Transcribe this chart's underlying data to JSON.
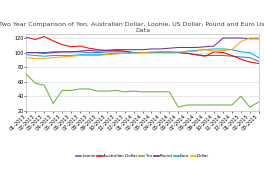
{
  "title": "Two Year Comparison of Yen, Australian Dollar, Loonie, US Dollar, Pound and Euro Using BIS\nData",
  "ylim": [
    20,
    125
  ],
  "yticks": [
    20,
    40,
    60,
    80,
    100,
    120
  ],
  "x_labels": [
    "01-2013",
    "02-2013",
    "03-2013",
    "04-2013",
    "05-2013",
    "06-2013",
    "07-2013",
    "08-2013",
    "09-2013",
    "10-2013",
    "11-2013",
    "12-2013",
    "01-2014",
    "02-2014",
    "03-2014",
    "04-2014",
    "05-2014",
    "06-2014",
    "07-2014",
    "08-2014",
    "09-2014",
    "10-2014",
    "11-2014",
    "12-2014",
    "01-2015",
    "02-2015",
    "03-2015"
  ],
  "series": [
    {
      "name": "Loonie",
      "color": "#4472C4",
      "values": [
        100,
        100,
        100,
        101,
        101,
        101,
        101,
        100,
        100,
        101,
        101,
        101,
        100,
        100,
        100,
        100,
        100,
        100,
        99,
        97,
        96,
        96,
        96,
        95,
        94,
        93,
        88
      ]
    },
    {
      "name": "Australian Dollar",
      "color": "#FF0000",
      "values": [
        121,
        118,
        122,
        116,
        111,
        108,
        109,
        106,
        104,
        103,
        103,
        102,
        100,
        100,
        100,
        101,
        101,
        100,
        99,
        97,
        95,
        101,
        100,
        96,
        91,
        87,
        85
      ]
    },
    {
      "name": "Yen",
      "color": "#70AD47",
      "values": [
        70,
        58,
        55,
        30,
        48,
        48,
        50,
        50,
        47,
        47,
        48,
        46,
        47,
        46,
        46,
        46,
        46,
        25,
        28,
        28,
        28,
        28,
        28,
        28,
        40,
        25,
        32
      ]
    },
    {
      "name": "Pound",
      "color": "#7030A0",
      "values": [
        100,
        100,
        99,
        100,
        101,
        101,
        102,
        103,
        102,
        103,
        104,
        104,
        104,
        104,
        105,
        105,
        106,
        107,
        107,
        107,
        108,
        109,
        120,
        120,
        120,
        119,
        119
      ]
    },
    {
      "name": "Euro",
      "color": "#00B0F0",
      "values": [
        97,
        96,
        95,
        96,
        96,
        96,
        97,
        97,
        97,
        98,
        99,
        99,
        100,
        100,
        100,
        100,
        100,
        100,
        102,
        103,
        104,
        105,
        105,
        104,
        101,
        100,
        93
      ]
    },
    {
      "name": "Dollar",
      "color": "#FFA500",
      "values": [
        93,
        92,
        92,
        93,
        94,
        95,
        96,
        96,
        96,
        97,
        98,
        99,
        99,
        100,
        101,
        101,
        101,
        101,
        101,
        102,
        104,
        102,
        103,
        104,
        115,
        120,
        120
      ]
    }
  ],
  "legend_order": [
    "Loonie",
    "Australian Dollar",
    "Yen",
    "Pound",
    "Euro",
    "Dollar"
  ],
  "bg_color": "#FFFFFF",
  "grid_color": "#D9D9D9",
  "title_fontsize": 4.5,
  "tick_fontsize": 3.5,
  "line_width": 0.75,
  "legend_fontsize": 3.0
}
